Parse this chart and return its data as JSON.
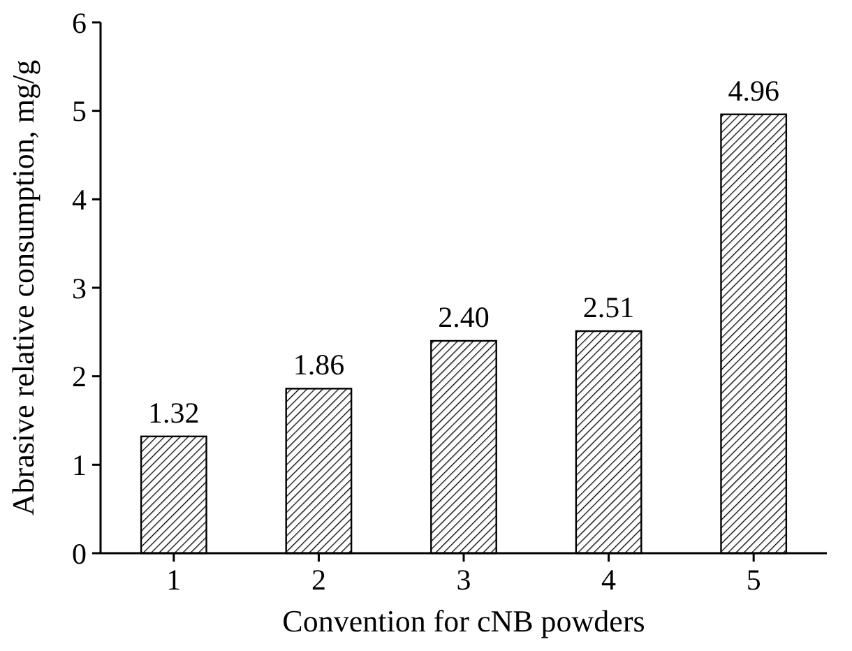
{
  "chart_data": {
    "type": "bar",
    "xlabel": "Convention for cNB powders",
    "ylabel": "Abrasive relative consumption, mg/g",
    "categories": [
      "1",
      "2",
      "3",
      "4",
      "5"
    ],
    "values": [
      1.32,
      1.86,
      2.4,
      2.51,
      4.96
    ],
    "value_labels": [
      "1.32",
      "1.86",
      "2.40",
      "2.51",
      "4.96"
    ],
    "color": "#000000",
    "ylim": [
      0,
      6
    ],
    "yticks": [
      0,
      1,
      2,
      3,
      4,
      5,
      6
    ],
    "grid": false
  }
}
